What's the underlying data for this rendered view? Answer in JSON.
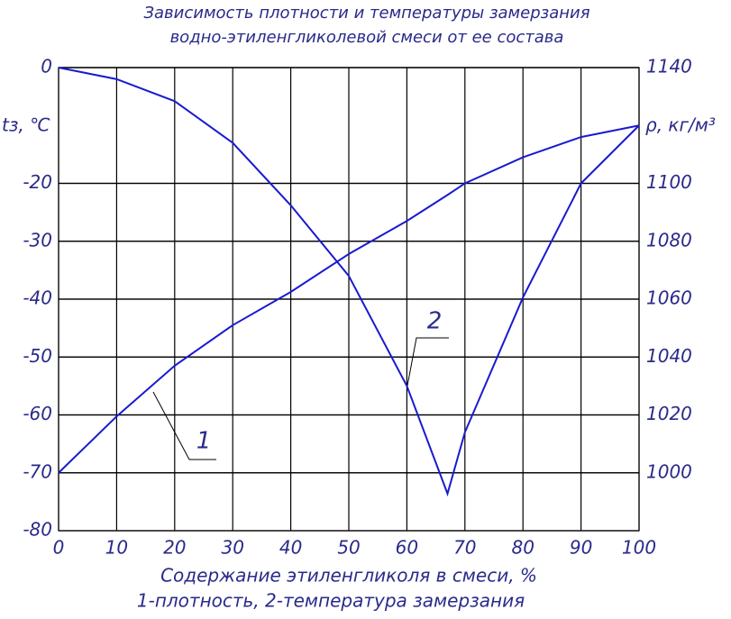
{
  "chart_data": {
    "type": "line",
    "title": [
      "Зависимость плотности и температуры замерзания",
      "водно-этиленгликолевой смеси от ее состава"
    ],
    "xlabel": "Содержание этиленгликоля в смеси, %",
    "caption": "1-плотность, 2-температура замерзания",
    "ylabel": "tз, ℃",
    "y2label": "ρ, кг/м³",
    "x": [
      0,
      10,
      20,
      30,
      40,
      50,
      60,
      67,
      70,
      80,
      90,
      100
    ],
    "xlim": [
      0,
      100
    ],
    "xticks": [
      0,
      10,
      20,
      30,
      40,
      50,
      60,
      70,
      80,
      90,
      100
    ],
    "ylim": [
      -80,
      0
    ],
    "yticks": [
      0,
      -20,
      -30,
      -40,
      -50,
      -60,
      -70,
      -80
    ],
    "y2lim": [
      980,
      1140
    ],
    "y2ticks": [
      1000,
      1020,
      1040,
      1060,
      1080,
      1100,
      1140
    ],
    "grid": true,
    "series": [
      {
        "name": "1",
        "color": "#1a1ad0",
        "axis": "y2",
        "values": [
          1000,
          1019.5,
          1037,
          1051,
          1062.5,
          1075.6,
          1087,
          1096,
          1100,
          1109,
          1116,
          1120
        ]
      },
      {
        "name": "2",
        "color": "#1a1ad0",
        "values": [
          0,
          -2,
          -5.8,
          -13,
          -23.8,
          -36,
          -55,
          -73.6,
          -63,
          -39.7,
          -20,
          -10
        ]
      }
    ]
  }
}
